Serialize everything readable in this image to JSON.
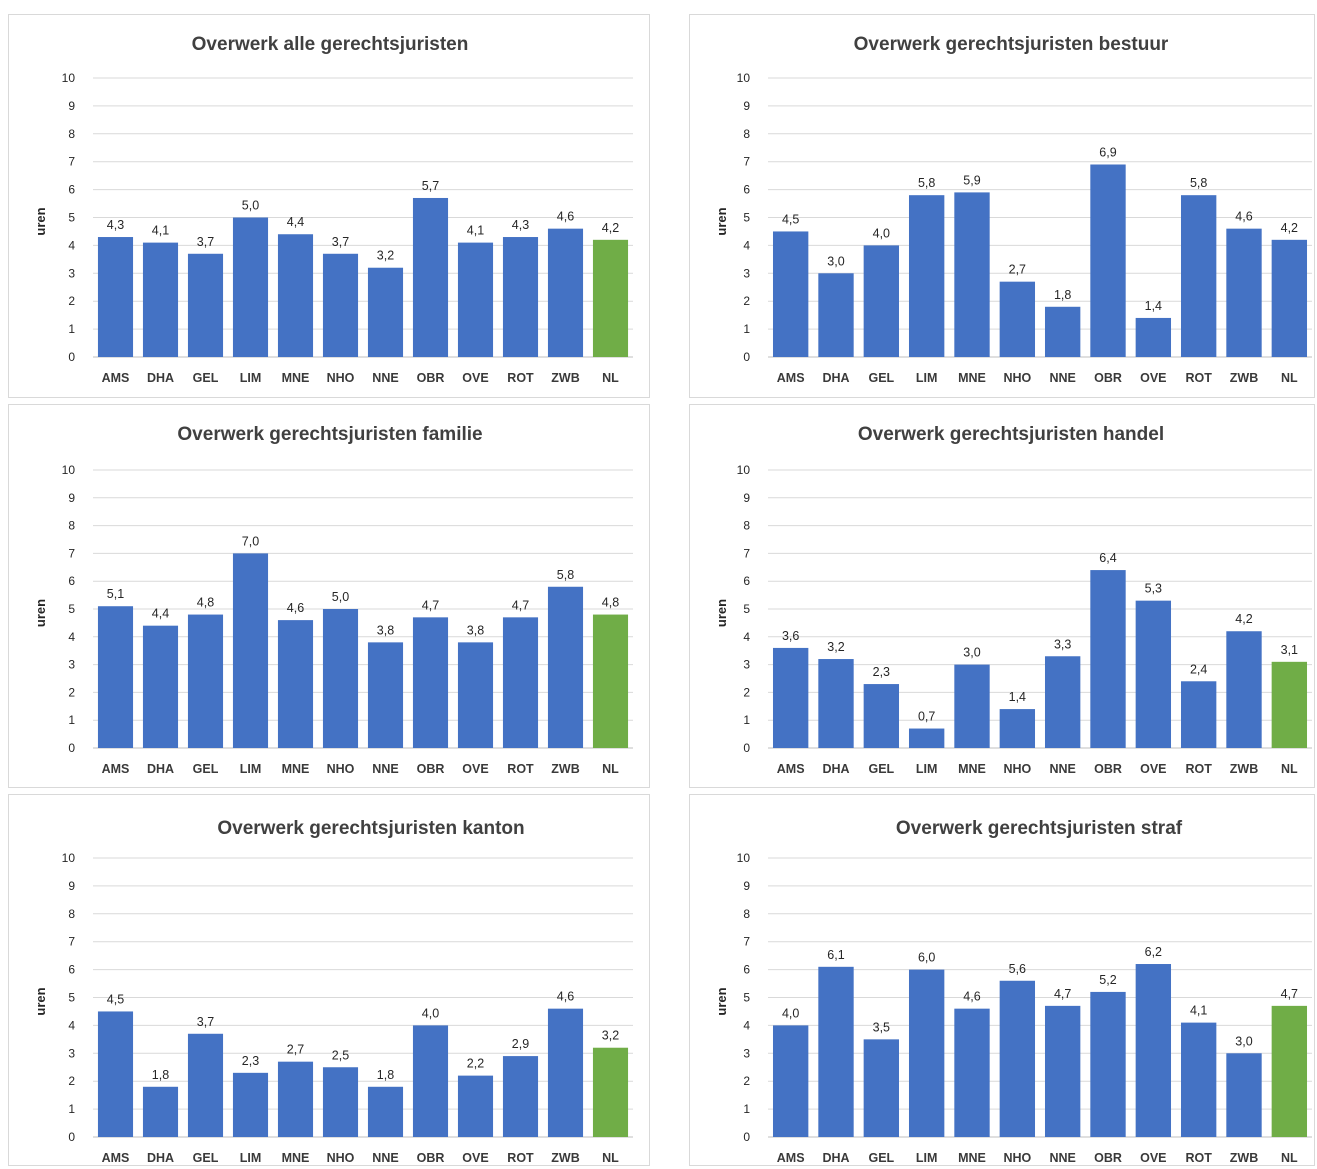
{
  "chart_data": [
    {
      "type": "bar",
      "title": "Overwerk alle  gerechtsjuristen",
      "ylabel": "uren",
      "ylim": [
        0,
        10
      ],
      "yticks": [
        "0",
        "1",
        "2",
        "3",
        "4",
        "5",
        "6",
        "7",
        "8",
        "9",
        "10"
      ],
      "categories": [
        "AMS",
        "DHA",
        "GEL",
        "LIM",
        "MNE",
        "NHO",
        "NNE",
        "OBR",
        "OVE",
        "ROT",
        "ZWB",
        "NL"
      ],
      "values": [
        4.3,
        4.1,
        3.7,
        5.0,
        4.4,
        3.7,
        3.2,
        5.7,
        4.1,
        4.3,
        4.6,
        4.2
      ],
      "labels": [
        "4,3",
        "4,1",
        "3,7",
        "5,0",
        "4,4",
        "3,7",
        "3,2",
        "5,7",
        "4,1",
        "4,3",
        "4,6",
        "4,2"
      ],
      "colors": [
        "#4472c4",
        "#4472c4",
        "#4472c4",
        "#4472c4",
        "#4472c4",
        "#4472c4",
        "#4472c4",
        "#4472c4",
        "#4472c4",
        "#4472c4",
        "#4472c4",
        "#70ad47"
      ],
      "grid": true
    },
    {
      "type": "bar",
      "title": "Overwerk  gerechtsjuristen bestuur",
      "ylabel": "uren",
      "ylim": [
        0,
        10
      ],
      "yticks": [
        "0",
        "1",
        "2",
        "3",
        "4",
        "5",
        "6",
        "7",
        "8",
        "9",
        "10"
      ],
      "categories": [
        "AMS",
        "DHA",
        "GEL",
        "LIM",
        "MNE",
        "NHO",
        "NNE",
        "OBR",
        "OVE",
        "ROT",
        "ZWB",
        "NL"
      ],
      "values": [
        4.5,
        3.0,
        4.0,
        5.8,
        5.9,
        2.7,
        1.8,
        6.9,
        1.4,
        5.8,
        4.6,
        4.2
      ],
      "labels": [
        "4,5",
        "3,0",
        "4,0",
        "5,8",
        "5,9",
        "2,7",
        "1,8",
        "6,9",
        "1,4",
        "5,8",
        "4,6",
        "4,2"
      ],
      "colors": [
        "#4472c4",
        "#4472c4",
        "#4472c4",
        "#4472c4",
        "#4472c4",
        "#4472c4",
        "#4472c4",
        "#4472c4",
        "#4472c4",
        "#4472c4",
        "#4472c4",
        "#4472c4"
      ],
      "grid": true
    },
    {
      "type": "bar",
      "title": "Overwerk  gerechtsjuristen familie",
      "ylabel": "uren",
      "ylim": [
        0,
        10
      ],
      "yticks": [
        "0",
        "1",
        "2",
        "3",
        "4",
        "5",
        "6",
        "7",
        "8",
        "9",
        "10"
      ],
      "categories": [
        "AMS",
        "DHA",
        "GEL",
        "LIM",
        "MNE",
        "NHO",
        "NNE",
        "OBR",
        "OVE",
        "ROT",
        "ZWB",
        "NL"
      ],
      "values": [
        5.1,
        4.4,
        4.8,
        7.0,
        4.6,
        5.0,
        3.8,
        4.7,
        3.8,
        4.7,
        5.8,
        4.8
      ],
      "labels": [
        "5,1",
        "4,4",
        "4,8",
        "7,0",
        "4,6",
        "5,0",
        "3,8",
        "4,7",
        "3,8",
        "4,7",
        "5,8",
        "4,8"
      ],
      "colors": [
        "#4472c4",
        "#4472c4",
        "#4472c4",
        "#4472c4",
        "#4472c4",
        "#4472c4",
        "#4472c4",
        "#4472c4",
        "#4472c4",
        "#4472c4",
        "#4472c4",
        "#70ad47"
      ],
      "grid": true
    },
    {
      "type": "bar",
      "title": "Overwerk  gerechtsjuristen handel",
      "ylabel": "uren",
      "ylim": [
        0,
        10
      ],
      "yticks": [
        "0",
        "1",
        "2",
        "3",
        "4",
        "5",
        "6",
        "7",
        "8",
        "9",
        "10"
      ],
      "categories": [
        "AMS",
        "DHA",
        "GEL",
        "LIM",
        "MNE",
        "NHO",
        "NNE",
        "OBR",
        "OVE",
        "ROT",
        "ZWB",
        "NL"
      ],
      "values": [
        3.6,
        3.2,
        2.3,
        0.7,
        3.0,
        1.4,
        3.3,
        6.4,
        5.3,
        2.4,
        4.2,
        3.1
      ],
      "labels": [
        "3,6",
        "3,2",
        "2,3",
        "0,7",
        "3,0",
        "1,4",
        "3,3",
        "6,4",
        "5,3",
        "2,4",
        "4,2",
        "3,1"
      ],
      "colors": [
        "#4472c4",
        "#4472c4",
        "#4472c4",
        "#4472c4",
        "#4472c4",
        "#4472c4",
        "#4472c4",
        "#4472c4",
        "#4472c4",
        "#4472c4",
        "#4472c4",
        "#70ad47"
      ],
      "grid": true
    },
    {
      "type": "bar",
      "title": "Overwerk  gerechtsjuristen kanton",
      "ylabel": "uren",
      "ylim": [
        0,
        10
      ],
      "yticks": [
        "0",
        "1",
        "2",
        "3",
        "4",
        "5",
        "6",
        "7",
        "8",
        "9",
        "10"
      ],
      "categories": [
        "AMS",
        "DHA",
        "GEL",
        "LIM",
        "MNE",
        "NHO",
        "NNE",
        "OBR",
        "OVE",
        "ROT",
        "ZWB",
        "NL"
      ],
      "values": [
        4.5,
        1.8,
        3.7,
        2.3,
        2.7,
        2.5,
        1.8,
        4.0,
        2.2,
        2.9,
        4.6,
        3.2
      ],
      "labels": [
        "4,5",
        "1,8",
        "3,7",
        "2,3",
        "2,7",
        "2,5",
        "1,8",
        "4,0",
        "2,2",
        "2,9",
        "4,6",
        "3,2"
      ],
      "colors": [
        "#4472c4",
        "#4472c4",
        "#4472c4",
        "#4472c4",
        "#4472c4",
        "#4472c4",
        "#4472c4",
        "#4472c4",
        "#4472c4",
        "#4472c4",
        "#4472c4",
        "#70ad47"
      ],
      "grid": true
    },
    {
      "type": "bar",
      "title": "Overwerk  gerechtsjuristen straf",
      "ylabel": "uren",
      "ylim": [
        0,
        10
      ],
      "yticks": [
        "0",
        "1",
        "2",
        "3",
        "4",
        "5",
        "6",
        "7",
        "8",
        "9",
        "10"
      ],
      "categories": [
        "AMS",
        "DHA",
        "GEL",
        "LIM",
        "MNE",
        "NHO",
        "NNE",
        "OBR",
        "OVE",
        "ROT",
        "ZWB",
        "NL"
      ],
      "values": [
        4.0,
        6.1,
        3.5,
        6.0,
        4.6,
        5.6,
        4.7,
        5.2,
        6.2,
        4.1,
        3.0,
        4.7
      ],
      "labels": [
        "4,0",
        "6,1",
        "3,5",
        "6,0",
        "4,6",
        "5,6",
        "4,7",
        "5,2",
        "6,2",
        "4,1",
        "3,0",
        "4,7"
      ],
      "colors": [
        "#4472c4",
        "#4472c4",
        "#4472c4",
        "#4472c4",
        "#4472c4",
        "#4472c4",
        "#4472c4",
        "#4472c4",
        "#4472c4",
        "#4472c4",
        "#4472c4",
        "#70ad47"
      ],
      "grid": true
    }
  ]
}
